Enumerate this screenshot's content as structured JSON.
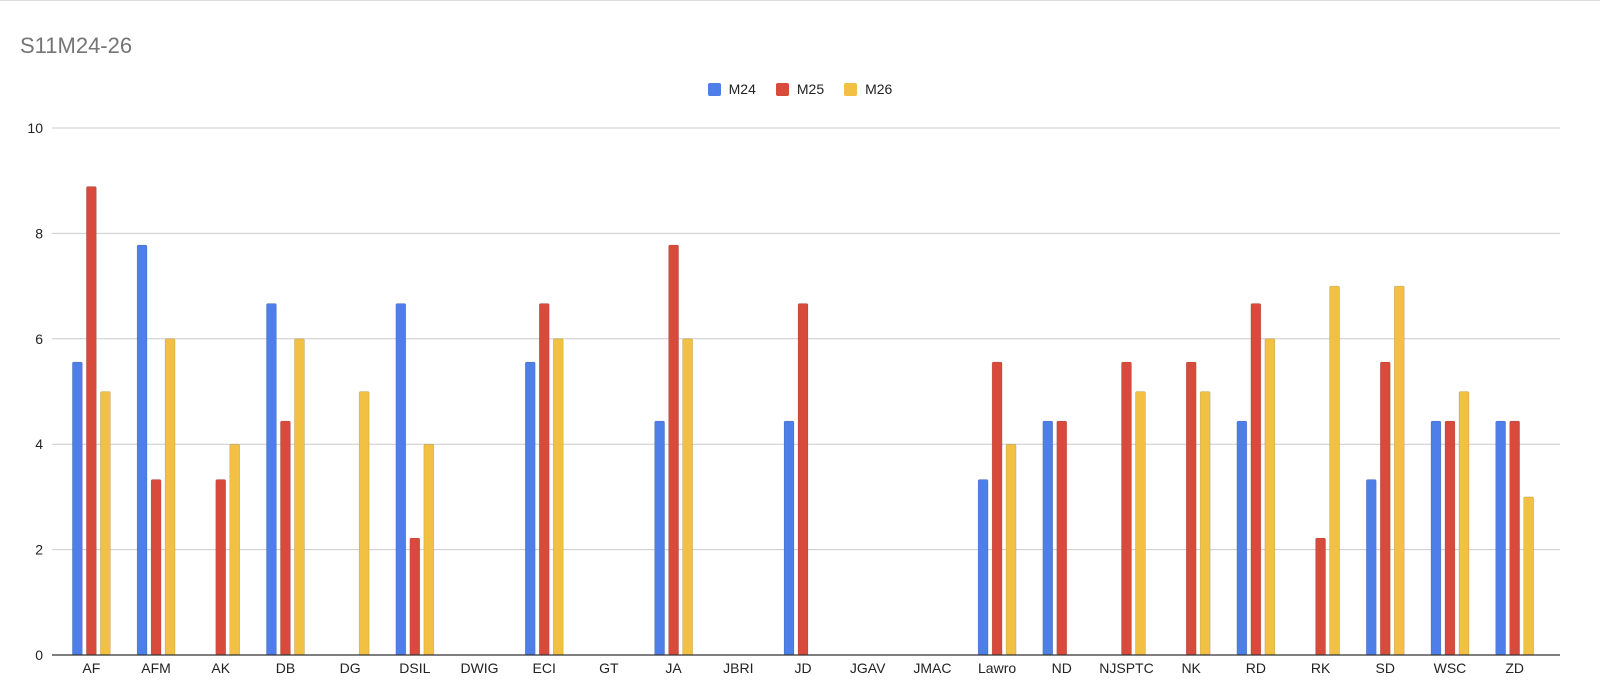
{
  "chart_data": {
    "type": "bar",
    "title": "S11M24-26",
    "xlabel": "",
    "ylabel": "",
    "ylim": [
      0,
      10
    ],
    "yticks": [
      0,
      2,
      4,
      6,
      8,
      10
    ],
    "grid": true,
    "legend_position": "top",
    "categories": [
      "AF",
      "AFM",
      "AK",
      "DB",
      "DG",
      "DSIL",
      "DWIG",
      "ECI",
      "GT",
      "JA",
      "JBRI",
      "JD",
      "JGAV",
      "JMAC",
      "Lawro",
      "ND",
      "NJSPTC",
      "NK",
      "RD",
      "RK",
      "SD",
      "WSC",
      "ZD"
    ],
    "series": [
      {
        "name": "M24",
        "color": "#4e7ee8",
        "values": [
          5.56,
          7.78,
          0,
          6.67,
          0,
          6.67,
          0,
          5.56,
          0,
          4.44,
          0,
          4.44,
          0,
          0,
          3.33,
          4.44,
          0,
          0,
          4.44,
          0,
          3.33,
          4.44,
          4.44
        ]
      },
      {
        "name": "M25",
        "color": "#d84b3c",
        "values": [
          8.89,
          3.33,
          3.33,
          4.44,
          0,
          2.22,
          0,
          6.67,
          0,
          7.78,
          0,
          6.67,
          0,
          0,
          5.56,
          4.44,
          5.56,
          5.56,
          6.67,
          2.22,
          5.56,
          4.44,
          4.44
        ]
      },
      {
        "name": "M26",
        "color": "#f2c042",
        "values": [
          5,
          6,
          4,
          6,
          5,
          4,
          0,
          6,
          0,
          6,
          0,
          0,
          0,
          0,
          4,
          0,
          5,
          5,
          6,
          7,
          7,
          5,
          3
        ]
      }
    ]
  }
}
